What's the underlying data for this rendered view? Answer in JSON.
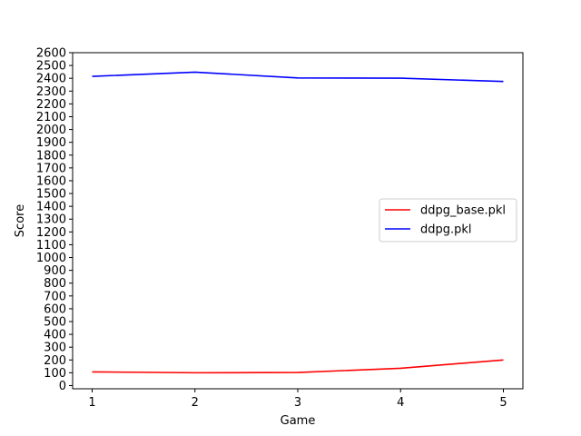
{
  "chart_data": {
    "type": "line",
    "title": "",
    "xlabel": "Game",
    "ylabel": "Score",
    "x": [
      1,
      2,
      3,
      4,
      5
    ],
    "xticks": [
      "1",
      "2",
      "3",
      "4",
      "5"
    ],
    "yticks": [
      "0",
      "100",
      "200",
      "300",
      "400",
      "500",
      "600",
      "700",
      "800",
      "900",
      "1000",
      "1100",
      "1200",
      "1300",
      "1400",
      "1500",
      "1600",
      "1700",
      "1800",
      "1900",
      "2000",
      "2100",
      "2200",
      "2300",
      "2400",
      "2500",
      "2600"
    ],
    "xlim": [
      0.81,
      5.19
    ],
    "ylim": [
      -25,
      2600
    ],
    "grid": false,
    "legend_position": "center-right",
    "series": [
      {
        "name": "ddpg_base.pkl",
        "color": "#ff0000",
        "values": [
          107,
          100,
          102,
          135,
          200
        ]
      },
      {
        "name": "ddpg.pkl",
        "color": "#0000ff",
        "values": [
          2415,
          2448,
          2403,
          2401,
          2375
        ]
      }
    ]
  }
}
